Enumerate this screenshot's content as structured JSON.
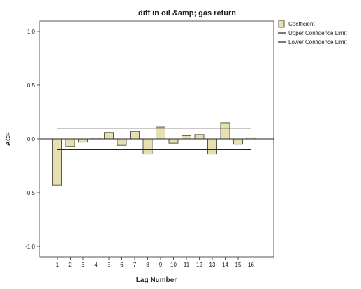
{
  "chart_data": {
    "type": "bar",
    "title": "diff in oil &amp; gas return",
    "xlabel": "Lag Number",
    "ylabel": "ACF",
    "categories": [
      "1",
      "2",
      "3",
      "4",
      "5",
      "6",
      "7",
      "8",
      "9",
      "10",
      "11",
      "12",
      "13",
      "14",
      "15",
      "16"
    ],
    "values": [
      -0.43,
      -0.07,
      -0.03,
      0.01,
      0.06,
      -0.06,
      0.07,
      -0.14,
      0.11,
      -0.04,
      0.03,
      0.04,
      -0.14,
      0.15,
      -0.05,
      0.01
    ],
    "upper_confidence_limit": 0.1,
    "lower_confidence_limit": -0.1,
    "ylim": [
      -1.0,
      1.0
    ],
    "yticks": [
      {
        "value": 1.0,
        "label": "1.0"
      },
      {
        "value": 0.5,
        "label": "0.5"
      },
      {
        "value": 0.0,
        "label": "0.0"
      },
      {
        "value": -0.5,
        "label": "-0.5"
      },
      {
        "value": -1.0,
        "label": "-1.0"
      }
    ],
    "legend": {
      "placement": "right",
      "items": [
        {
          "label": "Coefficient",
          "kind": "bar"
        },
        {
          "label": "Upper Confidence Limit",
          "kind": "line"
        },
        {
          "label": "Lower Confidence Limit",
          "kind": "line"
        }
      ]
    },
    "colors": {
      "bar_fill": "#e6dfb0",
      "bar_stroke": "#5c5a45",
      "line": "#222222",
      "plot_border": "#555555",
      "plot_background": "#ffffff"
    }
  }
}
